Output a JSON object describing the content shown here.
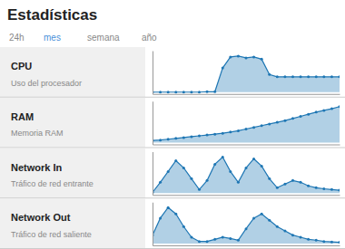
{
  "title": "Estadísticas",
  "nav_items": [
    "24h",
    "mes",
    "semana",
    "año"
  ],
  "nav_active": "mes",
  "nav_active_color": "#4a90d9",
  "nav_inactive_color": "#888888",
  "chart_data": [
    {
      "type": "area",
      "title": "CPU",
      "subtitle": "Uso del procesador",
      "values": [
        0,
        0,
        0,
        0,
        0,
        0,
        0,
        1,
        1,
        55,
        80,
        82,
        78,
        80,
        75,
        40,
        35,
        35,
        35,
        35,
        35,
        35,
        35,
        35,
        35
      ],
      "xlim": [
        0,
        24
      ],
      "ylim": [
        -4.1,
        94.3
      ],
      "tick_labels": false
    },
    {
      "type": "area",
      "title": "RAM",
      "subtitle": "Memoria RAM",
      "values": [
        5,
        6,
        8,
        10,
        12,
        14,
        16,
        18,
        20,
        22,
        25,
        28,
        32,
        36,
        40,
        44,
        48,
        52,
        57,
        62,
        67,
        72,
        76,
        80,
        85
      ],
      "xlim": [
        0,
        24
      ],
      "ylim": [
        -4.25,
        97.75
      ],
      "tick_labels": false
    },
    {
      "type": "area",
      "title": "Network In",
      "subtitle": "Tráfico de red entrante",
      "values": [
        2,
        30,
        60,
        90,
        70,
        40,
        10,
        35,
        80,
        100,
        60,
        30,
        70,
        95,
        75,
        40,
        15,
        25,
        35,
        30,
        20,
        15,
        12,
        10,
        8
      ],
      "xlim": [
        0,
        24
      ],
      "ylim": [
        -5,
        115
      ],
      "tick_labels": false
    },
    {
      "type": "area",
      "title": "Network Out",
      "subtitle": "Tráfico de red saliente",
      "values": [
        20,
        60,
        85,
        70,
        40,
        15,
        5,
        5,
        10,
        15,
        12,
        8,
        35,
        60,
        70,
        55,
        40,
        30,
        20,
        15,
        10,
        8,
        5,
        4,
        3
      ],
      "xlim": [
        0,
        24
      ],
      "ylim": [
        -4.25,
        97.75
      ],
      "tick_labels": false
    }
  ]
}
